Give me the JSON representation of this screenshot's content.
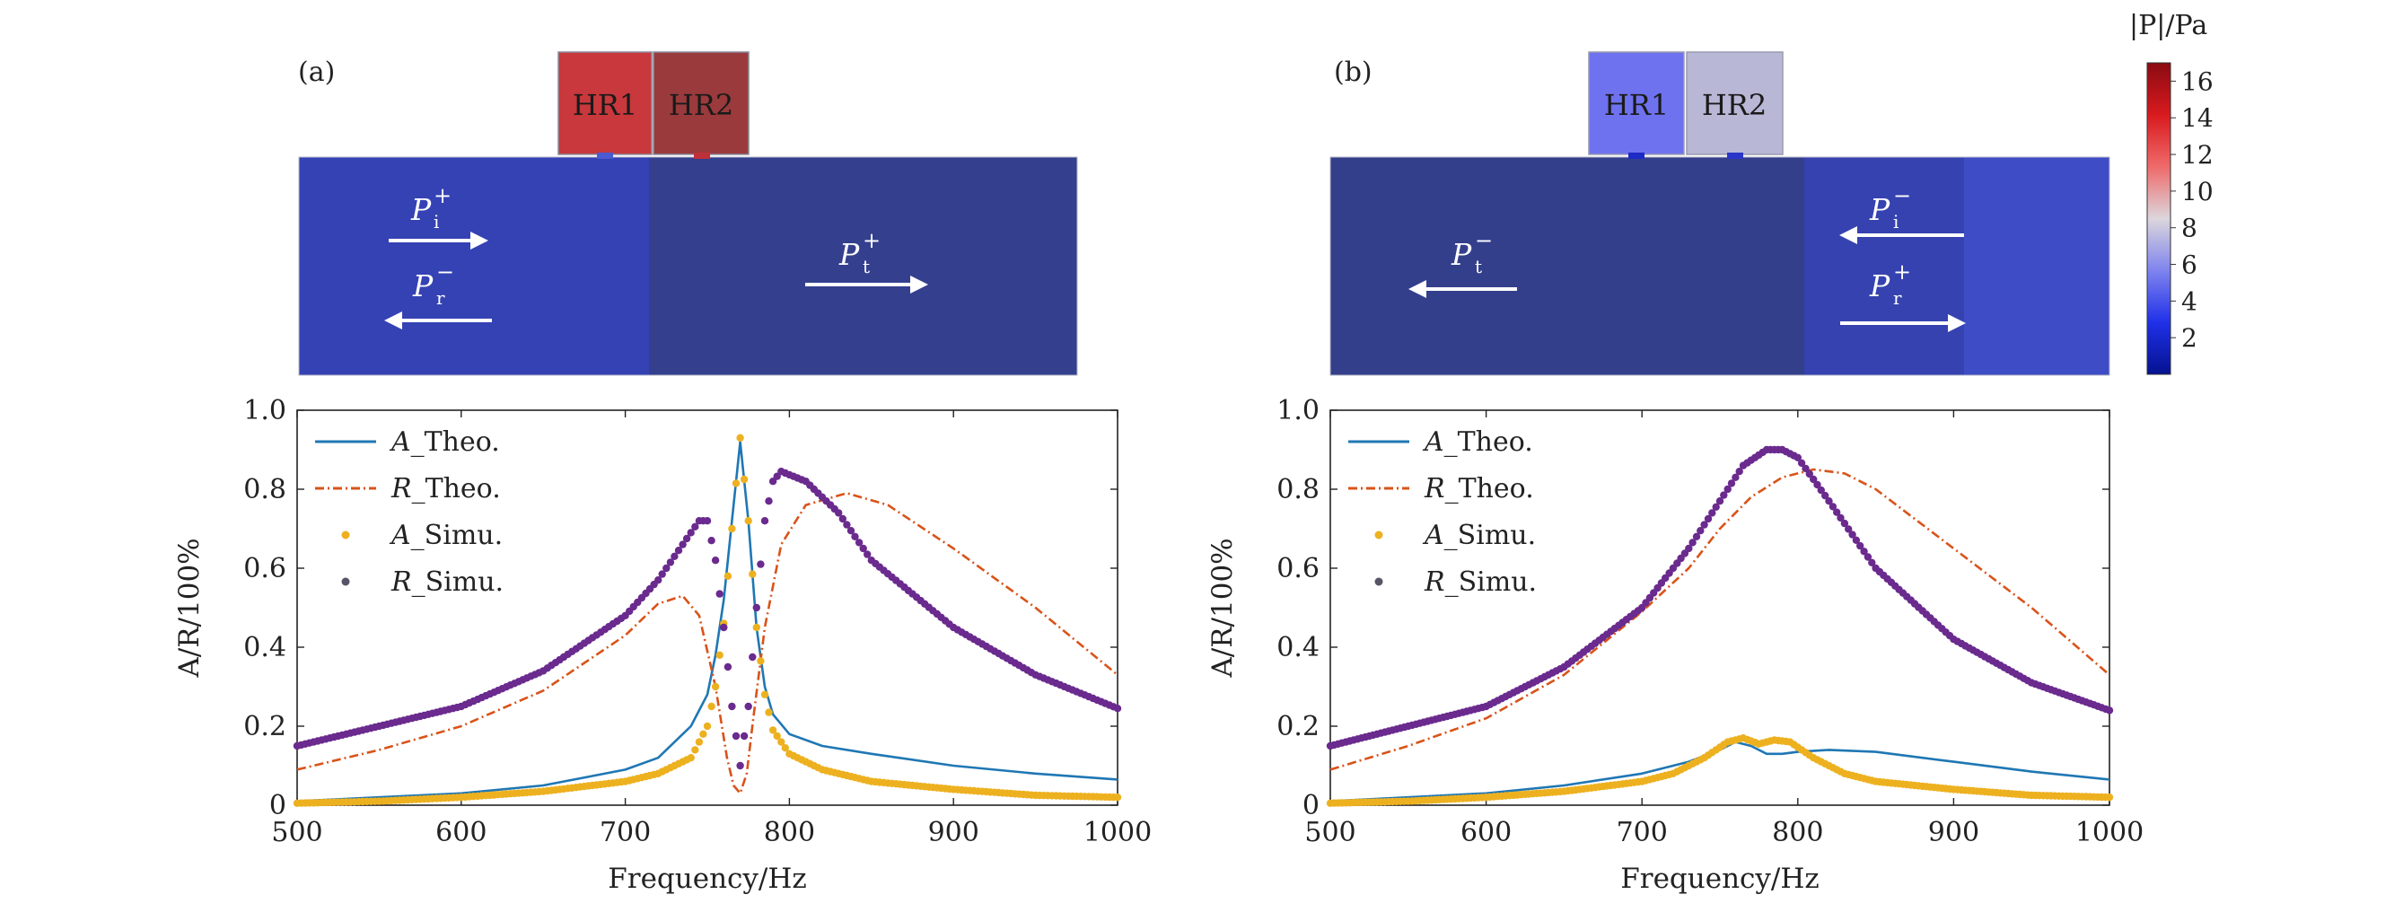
{
  "panels": [
    {
      "id": "a",
      "panel_label": "(a)",
      "field": {
        "resonators": [
          {
            "label": "HR1",
            "color": "#c8383c"
          },
          {
            "label": "HR2",
            "color": "#9a3a3c"
          }
        ],
        "regions": [
          {
            "color": "#3542b4"
          },
          {
            "color": "#34408e"
          }
        ],
        "waves": [
          {
            "sym": "P",
            "sub": "i",
            "sup": "+",
            "direction": "right"
          },
          {
            "sym": "P",
            "sub": "r",
            "sup": "−",
            "direction": "left"
          },
          {
            "sym": "P",
            "sub": "t",
            "sup": "+",
            "direction": "right"
          }
        ]
      }
    },
    {
      "id": "b",
      "panel_label": "(b)",
      "field": {
        "resonators": [
          {
            "label": "HR1",
            "color": "#6e72ee"
          },
          {
            "label": "HR2",
            "color": "#b8b7d6"
          }
        ],
        "regions": [
          {
            "color": "#343f8c"
          },
          {
            "color": "#3542b0"
          },
          {
            "color": "#3e4cc6"
          }
        ],
        "waves": [
          {
            "sym": "P",
            "sub": "t",
            "sup": "−",
            "direction": "left"
          },
          {
            "sym": "P",
            "sub": "i",
            "sup": "−",
            "direction": "left"
          },
          {
            "sym": "P",
            "sub": "r",
            "sup": "+",
            "direction": "right"
          }
        ]
      }
    }
  ],
  "colorbar": {
    "title": "|P|/Pa",
    "ticks": [
      "16",
      "14",
      "12",
      "10",
      "8",
      "6",
      "4",
      "2"
    ],
    "range": [
      0,
      17
    ],
    "stops": [
      "#8a0a12",
      "#d81a1e",
      "#ef6a6a",
      "#dcd6dc",
      "#7f84ee",
      "#2030e8",
      "#041290"
    ]
  },
  "legend": {
    "items": [
      {
        "var": "A",
        "text": "_Theo.",
        "color": "#1f77b4",
        "kind": "line"
      },
      {
        "var": "R",
        "text": "_Theo.",
        "color": "#d95319",
        "kind": "dashdot"
      },
      {
        "var": "A",
        "text": "_Simu.",
        "color": "#edb120",
        "kind": "dot"
      },
      {
        "var": "R",
        "text": "_Simu.",
        "color": "#555566",
        "kind": "dot"
      }
    ]
  },
  "chart_data": [
    {
      "type": "line",
      "panel": "(a)",
      "xlabel": "Frequency/Hz",
      "ylabel": "A/R/100%",
      "xlim": [
        500,
        1000
      ],
      "ylim": [
        0,
        1.0
      ],
      "xticks": [
        "500",
        "600",
        "700",
        "800",
        "900",
        "1000"
      ],
      "yticks": [
        "0",
        "0.2",
        "0.4",
        "0.6",
        "0.8",
        "1.0"
      ],
      "series": [
        {
          "key": "A_theo",
          "color": "#1f77b4",
          "x": [
            500,
            550,
            600,
            650,
            700,
            720,
            740,
            750,
            755,
            760,
            765,
            770,
            775,
            780,
            785,
            790,
            800,
            820,
            850,
            900,
            950,
            1000
          ],
          "y": [
            0.01,
            0.02,
            0.03,
            0.05,
            0.09,
            0.12,
            0.2,
            0.28,
            0.38,
            0.52,
            0.72,
            0.92,
            0.72,
            0.45,
            0.3,
            0.23,
            0.18,
            0.15,
            0.13,
            0.1,
            0.08,
            0.065
          ]
        },
        {
          "key": "R_theo",
          "color": "#d95319",
          "x": [
            500,
            550,
            600,
            650,
            700,
            720,
            735,
            745,
            755,
            762,
            766,
            770,
            774,
            778,
            785,
            795,
            810,
            835,
            860,
            900,
            950,
            1000
          ],
          "y": [
            0.09,
            0.14,
            0.2,
            0.29,
            0.43,
            0.51,
            0.53,
            0.48,
            0.3,
            0.12,
            0.05,
            0.03,
            0.08,
            0.22,
            0.45,
            0.66,
            0.76,
            0.79,
            0.76,
            0.65,
            0.5,
            0.33
          ]
        },
        {
          "key": "A_simu",
          "color": "#edb120",
          "x": [
            500,
            550,
            600,
            650,
            700,
            720,
            740,
            750,
            755,
            760,
            765,
            770,
            775,
            780,
            785,
            790,
            800,
            820,
            850,
            900,
            950,
            1000
          ],
          "y": [
            0.005,
            0.01,
            0.02,
            0.035,
            0.06,
            0.08,
            0.12,
            0.2,
            0.3,
            0.46,
            0.7,
            0.93,
            0.72,
            0.45,
            0.28,
            0.19,
            0.13,
            0.09,
            0.06,
            0.04,
            0.025,
            0.02
          ]
        },
        {
          "key": "R_simu",
          "color": "#6a2a8e",
          "x": [
            500,
            550,
            600,
            650,
            700,
            720,
            735,
            745,
            750,
            755,
            760,
            765,
            770,
            775,
            780,
            785,
            790,
            795,
            810,
            830,
            850,
            900,
            950,
            1000
          ],
          "y": [
            0.15,
            0.2,
            0.25,
            0.34,
            0.48,
            0.57,
            0.66,
            0.72,
            0.72,
            0.62,
            0.45,
            0.25,
            0.1,
            0.25,
            0.5,
            0.72,
            0.82,
            0.845,
            0.82,
            0.74,
            0.62,
            0.45,
            0.33,
            0.245
          ]
        }
      ]
    },
    {
      "type": "line",
      "panel": "(b)",
      "xlabel": "Frequency/Hz",
      "ylabel": "A/R/100%",
      "xlim": [
        500,
        1000
      ],
      "ylim": [
        0,
        1.0
      ],
      "xticks": [
        "500",
        "600",
        "700",
        "800",
        "900",
        "1000"
      ],
      "yticks": [
        "0",
        "0.2",
        "0.4",
        "0.6",
        "0.8",
        "1.0"
      ],
      "series": [
        {
          "key": "A_theo",
          "color": "#1f77b4",
          "x": [
            500,
            550,
            600,
            650,
            700,
            730,
            750,
            760,
            770,
            780,
            790,
            800,
            820,
            850,
            900,
            950,
            1000
          ],
          "y": [
            0.01,
            0.02,
            0.03,
            0.05,
            0.08,
            0.11,
            0.14,
            0.16,
            0.15,
            0.13,
            0.13,
            0.135,
            0.14,
            0.135,
            0.11,
            0.085,
            0.065
          ]
        },
        {
          "key": "R_theo",
          "color": "#d95319",
          "x": [
            500,
            550,
            600,
            650,
            700,
            730,
            750,
            770,
            790,
            810,
            830,
            850,
            900,
            950,
            1000
          ],
          "y": [
            0.09,
            0.15,
            0.22,
            0.33,
            0.49,
            0.6,
            0.7,
            0.78,
            0.83,
            0.85,
            0.84,
            0.8,
            0.65,
            0.5,
            0.33
          ]
        },
        {
          "key": "A_simu",
          "color": "#edb120",
          "x": [
            500,
            550,
            600,
            650,
            700,
            720,
            740,
            755,
            765,
            775,
            785,
            795,
            810,
            830,
            850,
            900,
            950,
            1000
          ],
          "y": [
            0.005,
            0.01,
            0.02,
            0.035,
            0.06,
            0.08,
            0.12,
            0.16,
            0.17,
            0.155,
            0.165,
            0.16,
            0.12,
            0.08,
            0.06,
            0.04,
            0.025,
            0.02
          ]
        },
        {
          "key": "R_simu",
          "color": "#6a2a8e",
          "x": [
            500,
            550,
            600,
            650,
            700,
            730,
            750,
            765,
            780,
            790,
            800,
            820,
            850,
            900,
            950,
            1000
          ],
          "y": [
            0.15,
            0.2,
            0.25,
            0.35,
            0.5,
            0.65,
            0.77,
            0.86,
            0.9,
            0.9,
            0.88,
            0.77,
            0.6,
            0.42,
            0.31,
            0.24
          ]
        }
      ]
    }
  ]
}
